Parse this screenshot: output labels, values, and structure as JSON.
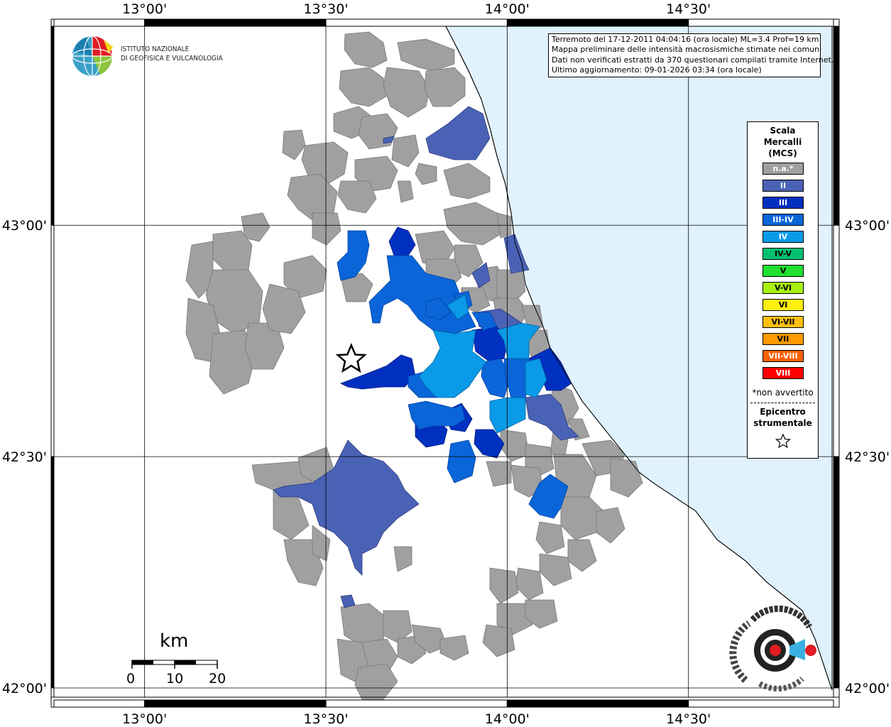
{
  "map": {
    "lon_labels": [
      "13°00'",
      "13°30'",
      "14°00'",
      "14°30'"
    ],
    "lat_labels": [
      "43°00'",
      "42°30'",
      "42°00'"
    ],
    "lon_range": [
      12.75,
      14.9
    ],
    "lat_range": [
      41.98,
      43.43
    ]
  },
  "info": {
    "line1": "Terremoto del 17-12-2011 04:04:16 (ora locale) ML=3.4 Prof=19 km",
    "line2": "Mappa preliminare delle intensità macrosismiche stimate nei comuni",
    "line3": "Dati non verificati estratti da 370 questionari compilati tramite Internet.",
    "line4": "Ultimo aggiornamento: 09-01-2026 03:34 (ora locale)"
  },
  "logo": {
    "line1": "ISTITUTO NAZIONALE",
    "line2": "DI GEOFISICA E VULCANOLOGIA"
  },
  "legend": {
    "title1": "Scala",
    "title2": "Mercalli",
    "title3": "(MCS)",
    "items": [
      {
        "label": "n.a.*",
        "color": "#a0a0a0"
      },
      {
        "label": "II",
        "color": "#4a62b5"
      },
      {
        "label": "III",
        "color": "#0030c0"
      },
      {
        "label": "III-IV",
        "color": "#0a65d8"
      },
      {
        "label": "IV",
        "color": "#0a9ae8"
      },
      {
        "label": "IV-V",
        "color": "#00c070"
      },
      {
        "label": "V",
        "color": "#20e030"
      },
      {
        "label": "V-VI",
        "color": "#a8f010"
      },
      {
        "label": "VI",
        "color": "#fff010"
      },
      {
        "label": "VI-VII",
        "color": "#ffc010"
      },
      {
        "label": "VII",
        "color": "#ff9a00"
      },
      {
        "label": "VII-VIII",
        "color": "#ff6000"
      },
      {
        "label": "VIII",
        "color": "#ff0000"
      }
    ],
    "note": "*non avvertito",
    "epicentro1": "Epicentro",
    "epicentro2": "strumentale"
  },
  "scalebar": {
    "unit": "km",
    "ticks": [
      "0",
      "10",
      "20"
    ]
  },
  "epicenter": {
    "lon": 13.57,
    "lat": 42.71
  },
  "colors": {
    "sea": "#e0f2fd",
    "na": "#a0a0a0",
    "II": "#4a62b5",
    "III": "#0030c0",
    "III-IV": "#0a65d8",
    "IV": "#0a9ae8"
  }
}
